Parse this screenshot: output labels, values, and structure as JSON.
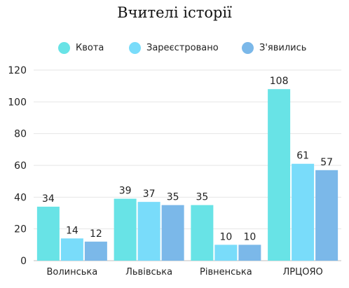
{
  "chart_data": {
    "type": "bar",
    "title": "Вчителі історії",
    "categories": [
      "Волинська",
      "Львівська",
      "Рівненська",
      "ЛРЦОЯО"
    ],
    "series": [
      {
        "name": "Квота",
        "values": [
          34,
          39,
          35,
          108
        ],
        "color": "#68E3E6"
      },
      {
        "name": "Зареєстровано",
        "values": [
          14,
          37,
          10,
          61
        ],
        "color": "#79DCFA"
      },
      {
        "name": "З'явились",
        "values": [
          12,
          35,
          10,
          57
        ],
        "color": "#7BB8E9"
      }
    ],
    "ylim": [
      0,
      120
    ],
    "yticks": [
      0,
      20,
      40,
      60,
      80,
      100,
      120
    ],
    "grid": true,
    "legend_position": "top",
    "data_labels": true,
    "xlabel": "",
    "ylabel": ""
  }
}
